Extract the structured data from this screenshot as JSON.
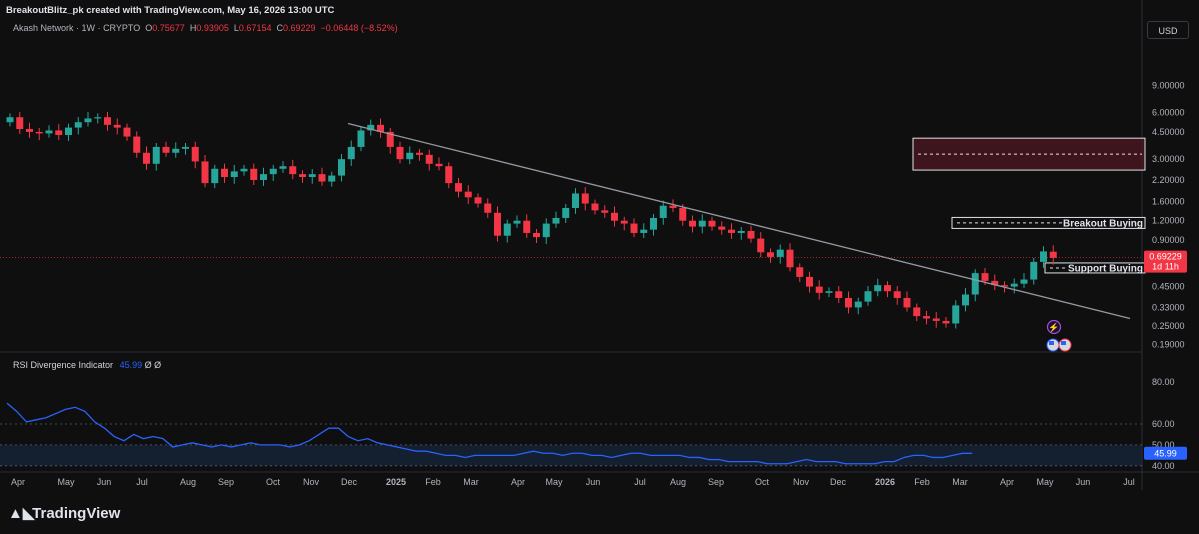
{
  "header": {
    "attribution": "BreakoutBlitz_pk created with TradingView.com, May 16, 2026 13:00 UTC"
  },
  "symbol": {
    "name": "Akash Network",
    "interval": "1W",
    "exchange": "CRYPTO",
    "o_label": "O",
    "open": "0.75677",
    "h_label": "H",
    "high": "0.93905",
    "l_label": "L",
    "low": "0.67154",
    "c_label": "C",
    "close": "0.69229",
    "change": "−0.06448 (−8.52%)"
  },
  "currency": "USD",
  "price_tag": {
    "value": "0.69229",
    "countdown": "1d 11h"
  },
  "zones": [
    {
      "label": "",
      "low": 2.55,
      "high": 4.1
    },
    {
      "label": "Breakout Buying",
      "low": 1.07,
      "high": 1.26
    },
    {
      "label": "Support Buying",
      "low": 0.59,
      "high": 0.64
    }
  ],
  "rsi": {
    "name": "RSI Divergence Indicator",
    "value": "45.99",
    "extra": "Ø Ø",
    "levels": [
      "80.00",
      "60.00",
      "50.00",
      "40.00"
    ],
    "value_tag": "45.99"
  },
  "branding": "TradingView",
  "colors": {
    "up": "#26a69a",
    "down": "#f23645",
    "rsi_line": "#2962ff",
    "trendline": "#9598a1",
    "zone_fill": "#4a1620"
  },
  "chart_data": [
    {
      "type": "candlestick",
      "title": "Akash Network · 1W · CRYPTO",
      "scale": "log",
      "ylim": [
        0.17,
        10.5
      ],
      "y_ticks": [
        "9.00000",
        "6.00000",
        "4.50000",
        "3.00000",
        "2.20000",
        "1.60000",
        "1.20000",
        "0.90000",
        "0.60000",
        "0.45000",
        "0.33000",
        "0.25000",
        "0.19000"
      ],
      "x_ticks": [
        "Apr",
        "May",
        "Jun",
        "Jul",
        "Aug",
        "Sep",
        "Oct",
        "Nov",
        "Dec",
        "2025",
        "Feb",
        "Mar",
        "Apr",
        "May",
        "Jun",
        "Jul",
        "Aug",
        "Sep",
        "Oct",
        "Nov",
        "Dec",
        "2026",
        "Feb",
        "Mar",
        "Apr",
        "May",
        "Jun",
        "Jul"
      ],
      "closes": [
        5.6,
        4.7,
        4.5,
        4.4,
        4.6,
        4.3,
        4.8,
        5.2,
        5.5,
        5.6,
        5.0,
        4.8,
        4.2,
        3.3,
        2.8,
        3.6,
        3.3,
        3.5,
        3.6,
        2.9,
        2.1,
        2.6,
        2.3,
        2.5,
        2.6,
        2.2,
        2.4,
        2.6,
        2.7,
        2.4,
        2.3,
        2.4,
        2.15,
        2.35,
        3.0,
        3.6,
        4.6,
        5.0,
        4.5,
        3.6,
        3.0,
        3.3,
        3.2,
        2.8,
        2.7,
        2.1,
        1.85,
        1.7,
        1.55,
        1.35,
        0.96,
        1.15,
        1.2,
        1.0,
        0.94,
        1.15,
        1.25,
        1.45,
        1.8,
        1.55,
        1.4,
        1.35,
        1.2,
        1.15,
        1.0,
        1.05,
        1.25,
        1.5,
        1.45,
        1.2,
        1.1,
        1.2,
        1.1,
        1.05,
        1.0,
        1.03,
        0.92,
        0.75,
        0.7,
        0.78,
        0.6,
        0.52,
        0.45,
        0.41,
        0.42,
        0.38,
        0.33,
        0.36,
        0.42,
        0.46,
        0.42,
        0.38,
        0.33,
        0.29,
        0.28,
        0.27,
        0.26,
        0.34,
        0.4,
        0.55,
        0.49,
        0.46,
        0.45,
        0.47,
        0.5,
        0.65,
        0.76,
        0.69
      ]
    },
    {
      "type": "line",
      "name": "RSI Divergence Indicator",
      "ylim": [
        38,
        82
      ],
      "values": [
        70,
        66,
        61,
        62,
        63,
        65,
        67,
        68,
        66,
        61,
        58,
        54,
        52,
        55,
        53,
        54,
        53,
        49,
        50,
        51,
        50,
        49,
        50,
        49,
        50,
        51,
        50,
        50,
        50,
        49,
        50,
        52,
        55,
        58,
        58,
        54,
        52,
        53,
        51,
        50,
        49,
        48,
        47,
        47,
        46,
        45,
        45,
        44,
        45,
        45,
        45,
        45,
        45,
        46,
        47,
        46,
        46,
        45,
        46,
        46,
        45,
        45,
        44,
        45,
        46,
        46,
        45,
        45,
        45,
        45,
        44,
        44,
        43,
        43,
        42,
        42,
        42,
        42,
        41,
        41,
        41,
        42,
        43,
        42,
        42,
        42,
        41,
        41,
        41,
        41,
        42,
        42,
        44,
        45,
        45,
        44,
        44,
        45,
        46,
        45.99
      ]
    }
  ]
}
